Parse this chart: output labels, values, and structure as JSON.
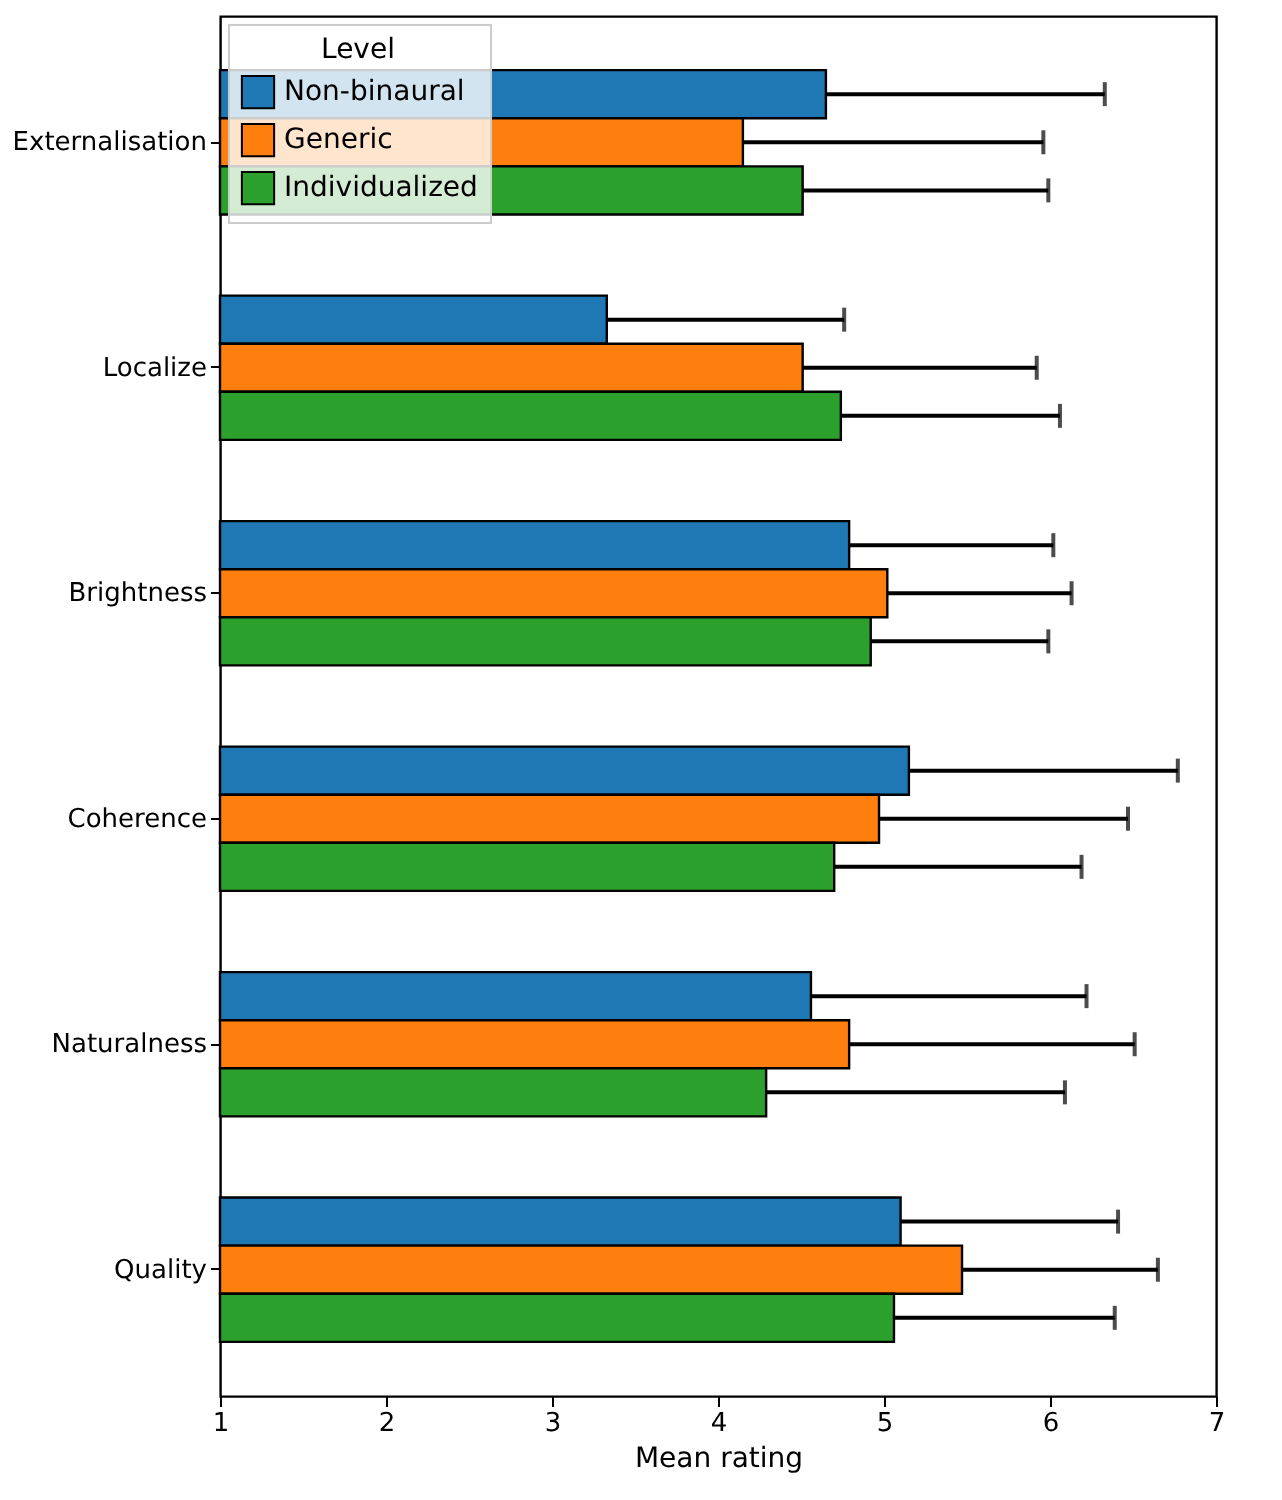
{
  "chart_data": {
    "type": "bar",
    "orientation": "horizontal",
    "xlabel": "Mean rating",
    "legend_title": "Level",
    "legend": "top left",
    "grid": false,
    "categories": [
      "Externalisation",
      "Localize",
      "Brightness",
      "Coherence",
      "Naturalness",
      "Quality"
    ],
    "xlim": [
      1,
      7
    ],
    "xticks": [
      1,
      2,
      3,
      4,
      5,
      6,
      7
    ],
    "series": [
      {
        "name": "Non-binaural",
        "color": "#1f77b4",
        "values": [
          4.65,
          3.33,
          4.79,
          5.15,
          4.56,
          5.1
        ],
        "errors": [
          [
            4.65,
            6.33
          ],
          [
            3.33,
            4.76
          ],
          [
            4.79,
            6.02
          ],
          [
            5.15,
            6.77
          ],
          [
            4.56,
            6.22
          ],
          [
            5.1,
            6.41
          ]
        ]
      },
      {
        "name": "Generic",
        "color": "#ff7f0e",
        "values": [
          4.15,
          4.51,
          5.02,
          4.97,
          4.79,
          5.47
        ],
        "errors": [
          [
            4.15,
            5.96
          ],
          [
            4.51,
            5.92
          ],
          [
            5.02,
            6.13
          ],
          [
            4.97,
            6.47
          ],
          [
            4.79,
            6.51
          ],
          [
            5.47,
            6.65
          ]
        ]
      },
      {
        "name": "Individualized",
        "color": "#2ca02c",
        "values": [
          4.51,
          4.74,
          4.92,
          4.7,
          4.29,
          5.06
        ],
        "errors": [
          [
            4.51,
            5.99
          ],
          [
            4.74,
            6.06
          ],
          [
            4.92,
            5.99
          ],
          [
            4.7,
            6.19
          ],
          [
            4.29,
            6.09
          ],
          [
            5.06,
            6.39
          ]
        ]
      }
    ]
  }
}
